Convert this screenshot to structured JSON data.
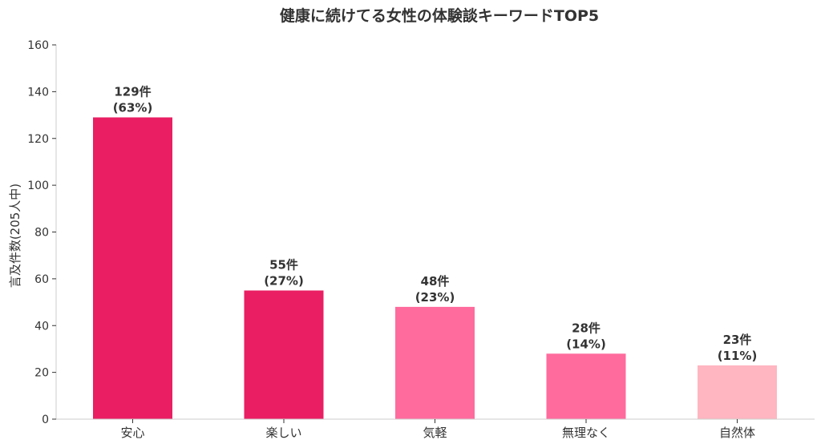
{
  "chart_data": {
    "type": "bar",
    "title": "健康に続けてる女性の体験談キーワードTOP5",
    "xlabel": "",
    "ylabel": "言及件数(205人中)",
    "ylim": [
      0,
      160
    ],
    "yticks": [
      "0",
      "20",
      "40",
      "60",
      "80",
      "100",
      "120",
      "140",
      "160"
    ],
    "grid": false,
    "categories": [
      "安心",
      "楽しい",
      "気軽",
      "無理なく",
      "自然体"
    ],
    "values": [
      129,
      55,
      48,
      28,
      23
    ],
    "count_labels": [
      "129件",
      "55件",
      "48件",
      "28件",
      "23件"
    ],
    "percent_labels": [
      "(63%)",
      "(27%)",
      "(23%)",
      "(14%)",
      "(11%)"
    ],
    "colors": [
      "#e91e63",
      "#e91e63",
      "#ff6b9d",
      "#ff6b9d",
      "#ffb6c1"
    ]
  }
}
